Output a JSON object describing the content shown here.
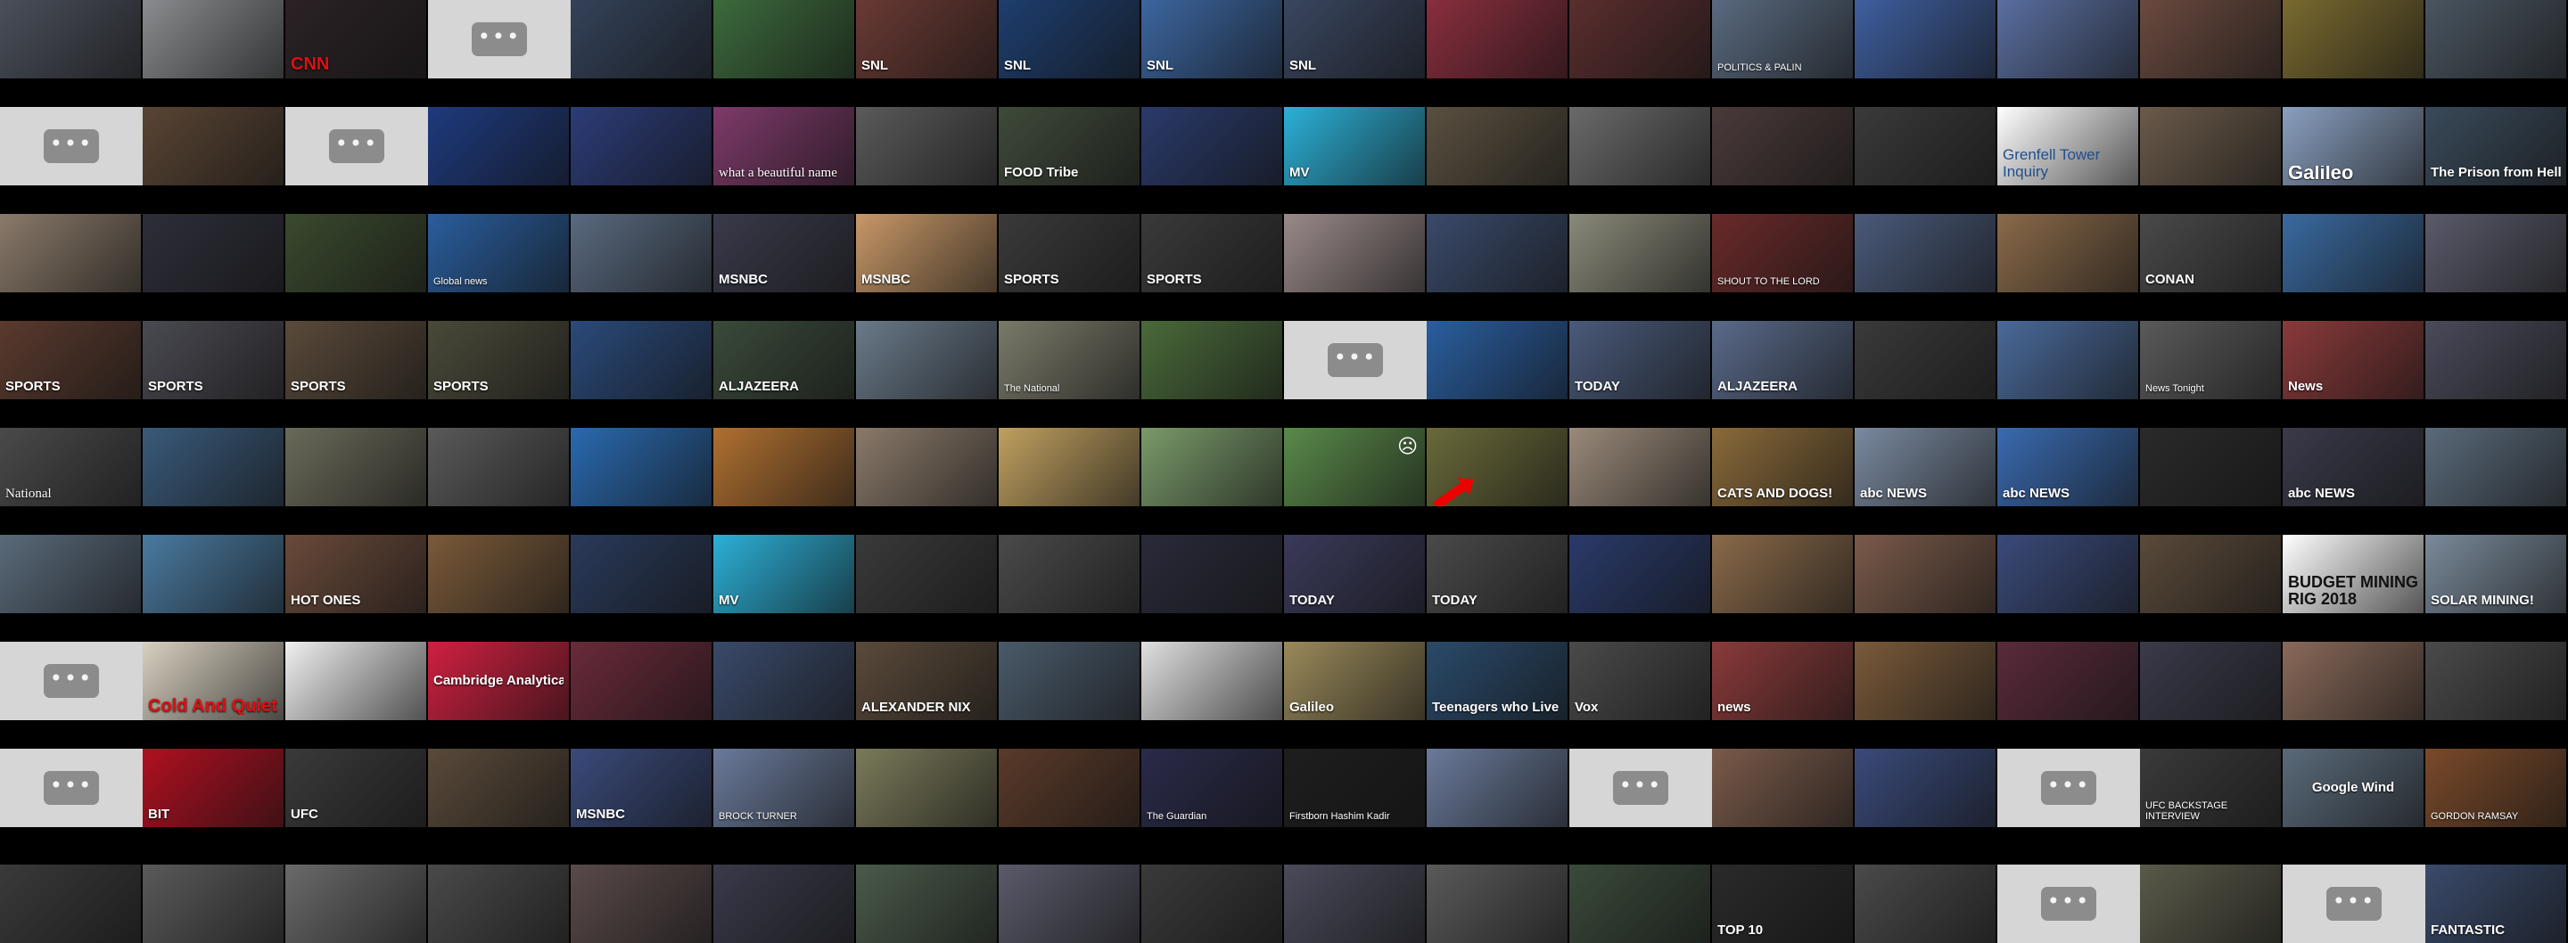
{
  "grid": {
    "columns": 18,
    "rows": 9,
    "row_top": [
      0,
      120,
      240,
      360,
      480,
      600,
      720,
      840,
      970
    ]
  },
  "placeholder_icon": "ellipsis-icon",
  "rows": [
    [
      {
        "color": "#4a4f5a"
      },
      {
        "color": "#8a8c8f"
      },
      {
        "color": "#2b2225",
        "text": "CNN",
        "style": "red"
      },
      {
        "type": "placeholder"
      },
      {
        "color": "#34425a"
      },
      {
        "color": "#3c6a3c"
      },
      {
        "color": "#6a3a34",
        "text": "SNL"
      },
      {
        "color": "#1e3e6e",
        "text": "SNL"
      },
      {
        "color": "#3c66a0",
        "text": "SNL"
      },
      {
        "color": "#3a4660",
        "text": "SNL"
      },
      {
        "color": "#8a2e3e"
      },
      {
        "color": "#5a2e2e"
      },
      {
        "color": "#5a6a80",
        "text": "POLITICS & PALIN",
        "style": "tiny"
      },
      {
        "color": "#3f5f9f"
      },
      {
        "color": "#5a6fa0"
      },
      {
        "color": "#6a4a3f"
      },
      {
        "color": "#7a6a30"
      },
      {
        "color": "#4a5560"
      }
    ],
    [
      {
        "type": "placeholder"
      },
      {
        "color": "#5a4534"
      },
      {
        "type": "placeholder"
      },
      {
        "color": "#1e3a7e"
      },
      {
        "color": "#2c3c78"
      },
      {
        "color": "#7e3a6a",
        "text": "what a beautiful name",
        "style": "serif"
      },
      {
        "color": "#5a5a5a"
      },
      {
        "color": "#3f4a3a",
        "text": "FOOD Tribe"
      },
      {
        "color": "#2a3a6a"
      },
      {
        "color": "#2cb0d8",
        "text": "MV"
      },
      {
        "color": "#5a5040"
      },
      {
        "color": "#6a6a6a"
      },
      {
        "color": "#4a3a3a"
      },
      {
        "color": "#3a3a3a"
      },
      {
        "color": "#ffffff",
        "text": "Grenfell Tower Inquiry",
        "style": "light"
      },
      {
        "color": "#6a5a4a"
      },
      {
        "color": "#8aa0c0",
        "text": "Galileo",
        "style": "big"
      },
      {
        "color": "#3a4a5a",
        "text": "The Prison from Hell"
      }
    ],
    [
      {
        "color": "#8a7a6a"
      },
      {
        "color": "#2e2e3a"
      },
      {
        "color": "#3a4a2e"
      },
      {
        "color": "#2a5e9e",
        "text": "Global news",
        "style": "tiny"
      },
      {
        "color": "#5a6a80"
      },
      {
        "color": "#3a3a4a",
        "text": "MSNBC"
      },
      {
        "color": "#c89868",
        "text": "MSNBC"
      },
      {
        "color": "#3a3a3a",
        "text": "SPORTS"
      },
      {
        "color": "#3a3a3a",
        "text": "SPORTS"
      },
      {
        "color": "#9a8a8a"
      },
      {
        "color": "#3a4a6a"
      },
      {
        "color": "#8a8a7a"
      },
      {
        "color": "#6a2a2a",
        "text": "SHOUT TO THE LORD",
        "style": "tiny"
      },
      {
        "color": "#4a5a7a"
      },
      {
        "color": "#8a6a4a"
      },
      {
        "color": "#4a4a4a",
        "text": "CONAN"
      },
      {
        "color": "#3a6aa0"
      },
      {
        "color": "#5a5a6a"
      }
    ],
    [
      {
        "color": "#5a3a2e",
        "text": "SPORTS"
      },
      {
        "color": "#4a4a52",
        "text": "SPORTS"
      },
      {
        "color": "#5a4a3a",
        "text": "SPORTS"
      },
      {
        "color": "#4a4a3a",
        "text": "SPORTS"
      },
      {
        "color": "#2a4a7a"
      },
      {
        "color": "#3a4a3a",
        "text": "ALJAZEERA"
      },
      {
        "color": "#6a7a8a"
      },
      {
        "color": "#7a7a6a",
        "text": "The National",
        "style": "tiny"
      },
      {
        "color": "#4a6a3a"
      },
      {
        "type": "placeholder"
      },
      {
        "color": "#2a5ea0"
      },
      {
        "color": "#4a5a7a",
        "text": "TODAY"
      },
      {
        "color": "#5a6a8a",
        "text": "ALJAZEERA"
      },
      {
        "color": "#3a3a3a"
      },
      {
        "color": "#4a6a9a"
      },
      {
        "color": "#5a5a5a",
        "text": "News Tonight",
        "style": "tiny"
      },
      {
        "color": "#8a3a3a",
        "text": "News"
      },
      {
        "color": "#4a4a5a"
      }
    ],
    [
      {
        "color": "#4a4a4a",
        "text": "National",
        "style": "serif"
      },
      {
        "color": "#3a5a7a"
      },
      {
        "color": "#6a6a5a"
      },
      {
        "color": "#5a5a5a"
      },
      {
        "color": "#2a6ab0"
      },
      {
        "color": "#b07030"
      },
      {
        "color": "#8a7a6a"
      },
      {
        "color": "#c0a060"
      },
      {
        "color": "#7a9a6a"
      },
      {
        "color": "#5a8a4a",
        "icon": "scared-face-icon"
      },
      {
        "color": "#6a6a3a",
        "icon": "red-arrow-icon"
      },
      {
        "color": "#9a8a7a"
      },
      {
        "color": "#8a6a3a",
        "text": "CATS AND DOGS!"
      },
      {
        "color": "#7a8aa0",
        "text": "abc NEWS"
      },
      {
        "color": "#3a6ab0",
        "text": "abc NEWS"
      },
      {
        "color": "#2a2a2a"
      },
      {
        "color": "#3a3a4a",
        "text": "abc NEWS"
      },
      {
        "color": "#5a6a7a"
      }
    ],
    [
      {
        "color": "#5a6a7a"
      },
      {
        "color": "#4a7aa0"
      },
      {
        "color": "#6a4a3a",
        "text": "HOT ONES"
      },
      {
        "color": "#7a5a3a"
      },
      {
        "color": "#2a3a5a"
      },
      {
        "color": "#2cb0d8",
        "text": "MV"
      },
      {
        "color": "#3a3a3a"
      },
      {
        "color": "#4a4a4a"
      },
      {
        "color": "#2a2a3a"
      },
      {
        "color": "#3a3a5a",
        "text": "TODAY"
      },
      {
        "color": "#4a4a4a",
        "text": "TODAY"
      },
      {
        "color": "#2a3a6a"
      },
      {
        "color": "#8a6a4a"
      },
      {
        "color": "#7a5a4a"
      },
      {
        "color": "#3a4a7a"
      },
      {
        "color": "#5a4a3a"
      },
      {
        "color": "#ffffff",
        "text": "BUDGET MINING RIG 2018",
        "style": "yel"
      },
      {
        "color": "#7a8a9a",
        "text": "SOLAR MINING!"
      }
    ],
    [
      {
        "type": "placeholder"
      },
      {
        "color": "#d8d0c0",
        "text": "Cold And Quiet",
        "style": "red"
      },
      {
        "color": "#f0f0f0"
      },
      {
        "color": "#d02040",
        "text": "Cambridge Analytica",
        "style": "c"
      },
      {
        "color": "#6a2a3a"
      },
      {
        "color": "#3a4a6a"
      },
      {
        "color": "#5a4a3a",
        "text": "ALEXANDER NIX"
      },
      {
        "color": "#4a5a6a"
      },
      {
        "color": "#e0e0e0"
      },
      {
        "color": "#9a8a5a",
        "text": "Galileo"
      },
      {
        "color": "#2a4a6a",
        "text": "Teenagers who Live Underground"
      },
      {
        "color": "#4a4a4a",
        "text": "Vox"
      },
      {
        "color": "#8a3a3a",
        "text": "news"
      },
      {
        "color": "#7a5a3a"
      },
      {
        "color": "#5a2a3a"
      },
      {
        "color": "#3a3a4a"
      },
      {
        "color": "#8a6a5a"
      },
      {
        "color": "#4a4a4a"
      }
    ],
    [
      {
        "type": "placeholder"
      },
      {
        "color": "#b01020",
        "text": "BIT"
      },
      {
        "color": "#3a3a3a",
        "text": "UFC"
      },
      {
        "color": "#5a4a3a"
      },
      {
        "color": "#3a4a7a",
        "text": "MSNBC"
      },
      {
        "color": "#6a7a9a",
        "text": "BROCK TURNER",
        "style": "tiny"
      },
      {
        "color": "#7a7a5a"
      },
      {
        "color": "#5a3a2a"
      },
      {
        "color": "#2a2a4a",
        "text": "The Guardian",
        "style": "tiny"
      },
      {
        "color": "#1e1e1e",
        "text": "Firstborn Hashim Kadir",
        "style": "tiny"
      },
      {
        "color": "#6a7a9a"
      },
      {
        "type": "placeholder"
      },
      {
        "color": "#7a5a4a"
      },
      {
        "color": "#3a4a7a"
      },
      {
        "type": "placeholder"
      },
      {
        "color": "#3a3a3a",
        "text": "UFC BACKSTAGE INTERVIEW",
        "style": "tiny"
      },
      {
        "color": "#5a6a7a",
        "text": "Google Wind",
        "style": "c"
      },
      {
        "color": "#7a4a2a",
        "text": "GORDON RAMSAY",
        "style": "tiny"
      }
    ],
    [
      {
        "color": "#3a3a3a"
      },
      {
        "color": "#5a5a5a"
      },
      {
        "color": "#6a6a6a"
      },
      {
        "color": "#4a4a4a"
      },
      {
        "color": "#5a4a4a"
      },
      {
        "color": "#3a3a4a"
      },
      {
        "color": "#4a5a4a"
      },
      {
        "color": "#5a5a6a"
      },
      {
        "color": "#3a3a3a"
      },
      {
        "color": "#4a4a5a"
      },
      {
        "color": "#5a5a5a"
      },
      {
        "color": "#3a4a3a"
      },
      {
        "color": "#2a2a2a",
        "text": "TOP 10"
      },
      {
        "color": "#4a4a4a"
      },
      {
        "type": "placeholder"
      },
      {
        "color": "#5a5a4a"
      },
      {
        "type": "placeholder"
      },
      {
        "color": "#3a4a6a",
        "text": "FANTASTIC"
      }
    ]
  ]
}
